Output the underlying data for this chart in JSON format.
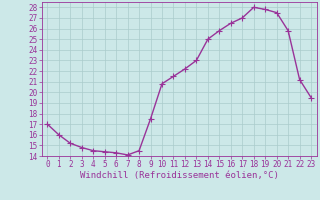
{
  "x": [
    0,
    1,
    2,
    3,
    4,
    5,
    6,
    7,
    8,
    9,
    10,
    11,
    12,
    13,
    14,
    15,
    16,
    17,
    18,
    19,
    20,
    21,
    22,
    23
  ],
  "y": [
    17.0,
    16.0,
    15.2,
    14.8,
    14.5,
    14.4,
    14.3,
    14.1,
    14.5,
    17.5,
    20.8,
    21.5,
    22.2,
    23.0,
    25.0,
    25.8,
    26.5,
    27.0,
    28.0,
    27.8,
    27.5,
    25.8,
    21.2,
    19.5
  ],
  "line_color": "#993399",
  "marker": "+",
  "marker_size": 4,
  "bg_color": "#cce8e8",
  "grid_color": "#aacccc",
  "xlabel": "Windchill (Refroidissement éolien,°C)",
  "xlabel_color": "#993399",
  "xlim": [
    -0.5,
    23.5
  ],
  "ylim": [
    14,
    28.5
  ],
  "yticks": [
    14,
    15,
    16,
    17,
    18,
    19,
    20,
    21,
    22,
    23,
    24,
    25,
    26,
    27,
    28
  ],
  "xticks": [
    0,
    1,
    2,
    3,
    4,
    5,
    6,
    7,
    8,
    9,
    10,
    11,
    12,
    13,
    14,
    15,
    16,
    17,
    18,
    19,
    20,
    21,
    22,
    23
  ],
  "tick_color": "#993399",
  "tick_fontsize": 5.5,
  "xlabel_fontsize": 6.5,
  "spine_color": "#993399",
  "linewidth": 1.0,
  "markeredgewidth": 0.8
}
